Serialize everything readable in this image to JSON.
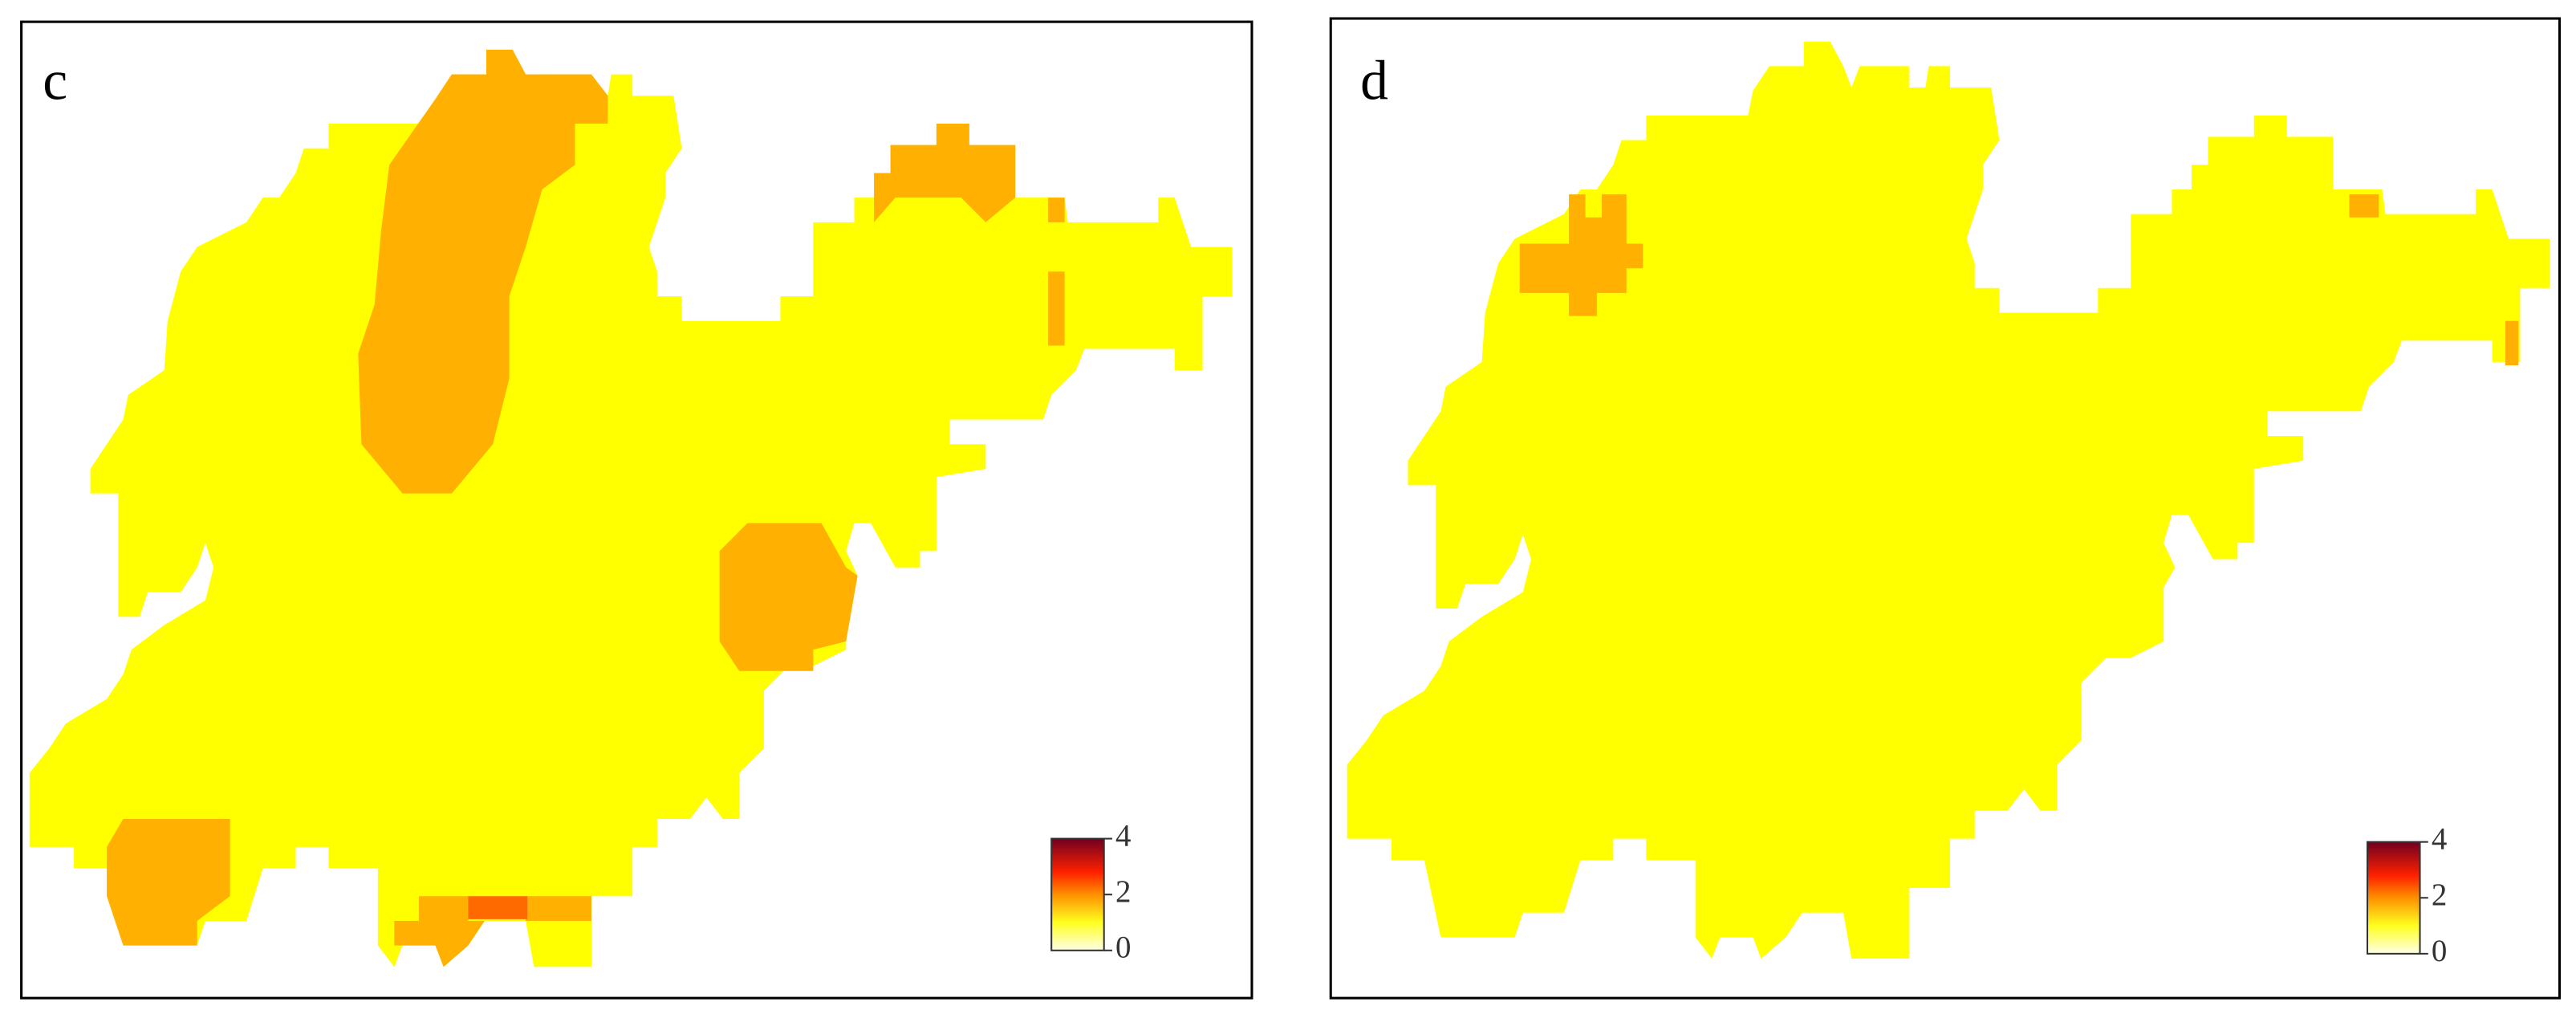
{
  "panels": [
    {
      "label": "c",
      "colorbar_ticks": [
        4,
        2,
        0
      ]
    },
    {
      "label": "d",
      "colorbar_ticks": [
        4,
        2,
        0
      ]
    }
  ]
}
